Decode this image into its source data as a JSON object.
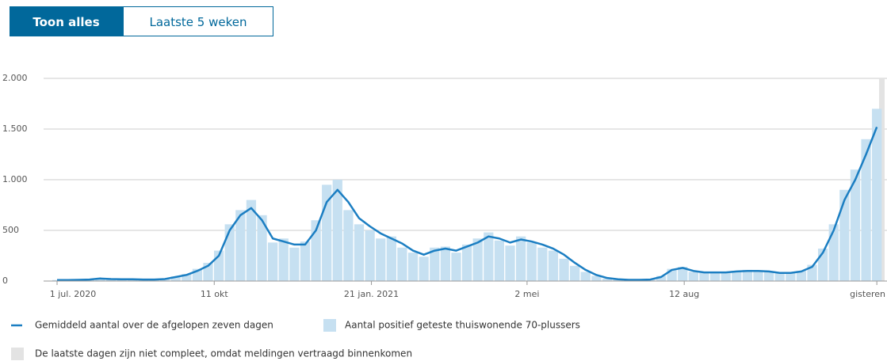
{
  "buttons": [
    "Toon alles",
    "Laatste 5 weken"
  ],
  "chart_data": {
    "type": "bar-line",
    "x": [
      0,
      7,
      14,
      21,
      28,
      35,
      42,
      49,
      56,
      63,
      70,
      77,
      84,
      91,
      98,
      105,
      112,
      119,
      126,
      133,
      140,
      147,
      154,
      161,
      168,
      175,
      182,
      189,
      196,
      203,
      210,
      217,
      224,
      231,
      238,
      245,
      252,
      259,
      266,
      273,
      280,
      287,
      294,
      301,
      308,
      315,
      322,
      329,
      336,
      343,
      350,
      357,
      364,
      371,
      378,
      385,
      392,
      399,
      406,
      413,
      420,
      427,
      434,
      441,
      448,
      455,
      462,
      469,
      476,
      483,
      490,
      497,
      504,
      511,
      518,
      525,
      532
    ],
    "series": [
      {
        "name": "Aantal positief geteste thuiswonende 70-plussers",
        "kind": "bar",
        "color": "#c6e0f1",
        "values": [
          10,
          12,
          14,
          18,
          28,
          22,
          20,
          17,
          16,
          14,
          22,
          45,
          70,
          120,
          180,
          300,
          560,
          700,
          800,
          650,
          380,
          420,
          330,
          390,
          600,
          950,
          1000,
          700,
          560,
          500,
          420,
          440,
          330,
          280,
          240,
          330,
          340,
          280,
          360,
          420,
          480,
          400,
          350,
          440,
          380,
          330,
          300,
          220,
          150,
          90,
          50,
          25,
          15,
          10,
          12,
          14,
          50,
          120,
          140,
          90,
          80,
          90,
          80,
          100,
          110,
          95,
          90,
          75,
          85,
          100,
          160,
          320,
          560,
          900,
          1100,
          1400,
          1700
        ]
      },
      {
        "name": "Gemiddeld aantal over de afgelopen zeven dagen",
        "kind": "line",
        "color": "#1b7ec2",
        "values": [
          10,
          10,
          12,
          15,
          25,
          20,
          18,
          18,
          15,
          15,
          20,
          40,
          60,
          100,
          150,
          250,
          500,
          650,
          720,
          600,
          420,
          390,
          360,
          360,
          500,
          780,
          900,
          780,
          620,
          540,
          470,
          420,
          370,
          300,
          260,
          300,
          320,
          300,
          340,
          380,
          440,
          420,
          380,
          410,
          390,
          360,
          320,
          260,
          180,
          110,
          60,
          30,
          18,
          12,
          12,
          15,
          40,
          110,
          130,
          100,
          85,
          85,
          85,
          95,
          100,
          100,
          95,
          80,
          80,
          95,
          140,
          280,
          500,
          800,
          1000,
          1250,
          1520
        ]
      }
    ],
    "incomplete_note": "De laatste dagen zijn niet compleet, omdat meldingen vertraagd binnenkomen",
    "incomplete_color": "#e3e3e3",
    "xlim": [
      0,
      535
    ],
    "xticks": [
      {
        "value": 0,
        "label": "1 jul. 2020"
      },
      {
        "value": 102,
        "label": "11 okt"
      },
      {
        "value": 204,
        "label": "21 jan. 2021"
      },
      {
        "value": 305,
        "label": "2 mei"
      },
      {
        "value": 407,
        "label": "12 aug"
      },
      {
        "value": 532,
        "label": "gisteren"
      }
    ],
    "ylim": [
      0,
      2000
    ],
    "yticks": [
      0,
      500,
      {
        "value": 1000,
        "label": "1.000"
      },
      {
        "value": 1500,
        "label": "1.500"
      },
      {
        "value": 2000,
        "label": "2.000"
      }
    ],
    "grid": true
  }
}
